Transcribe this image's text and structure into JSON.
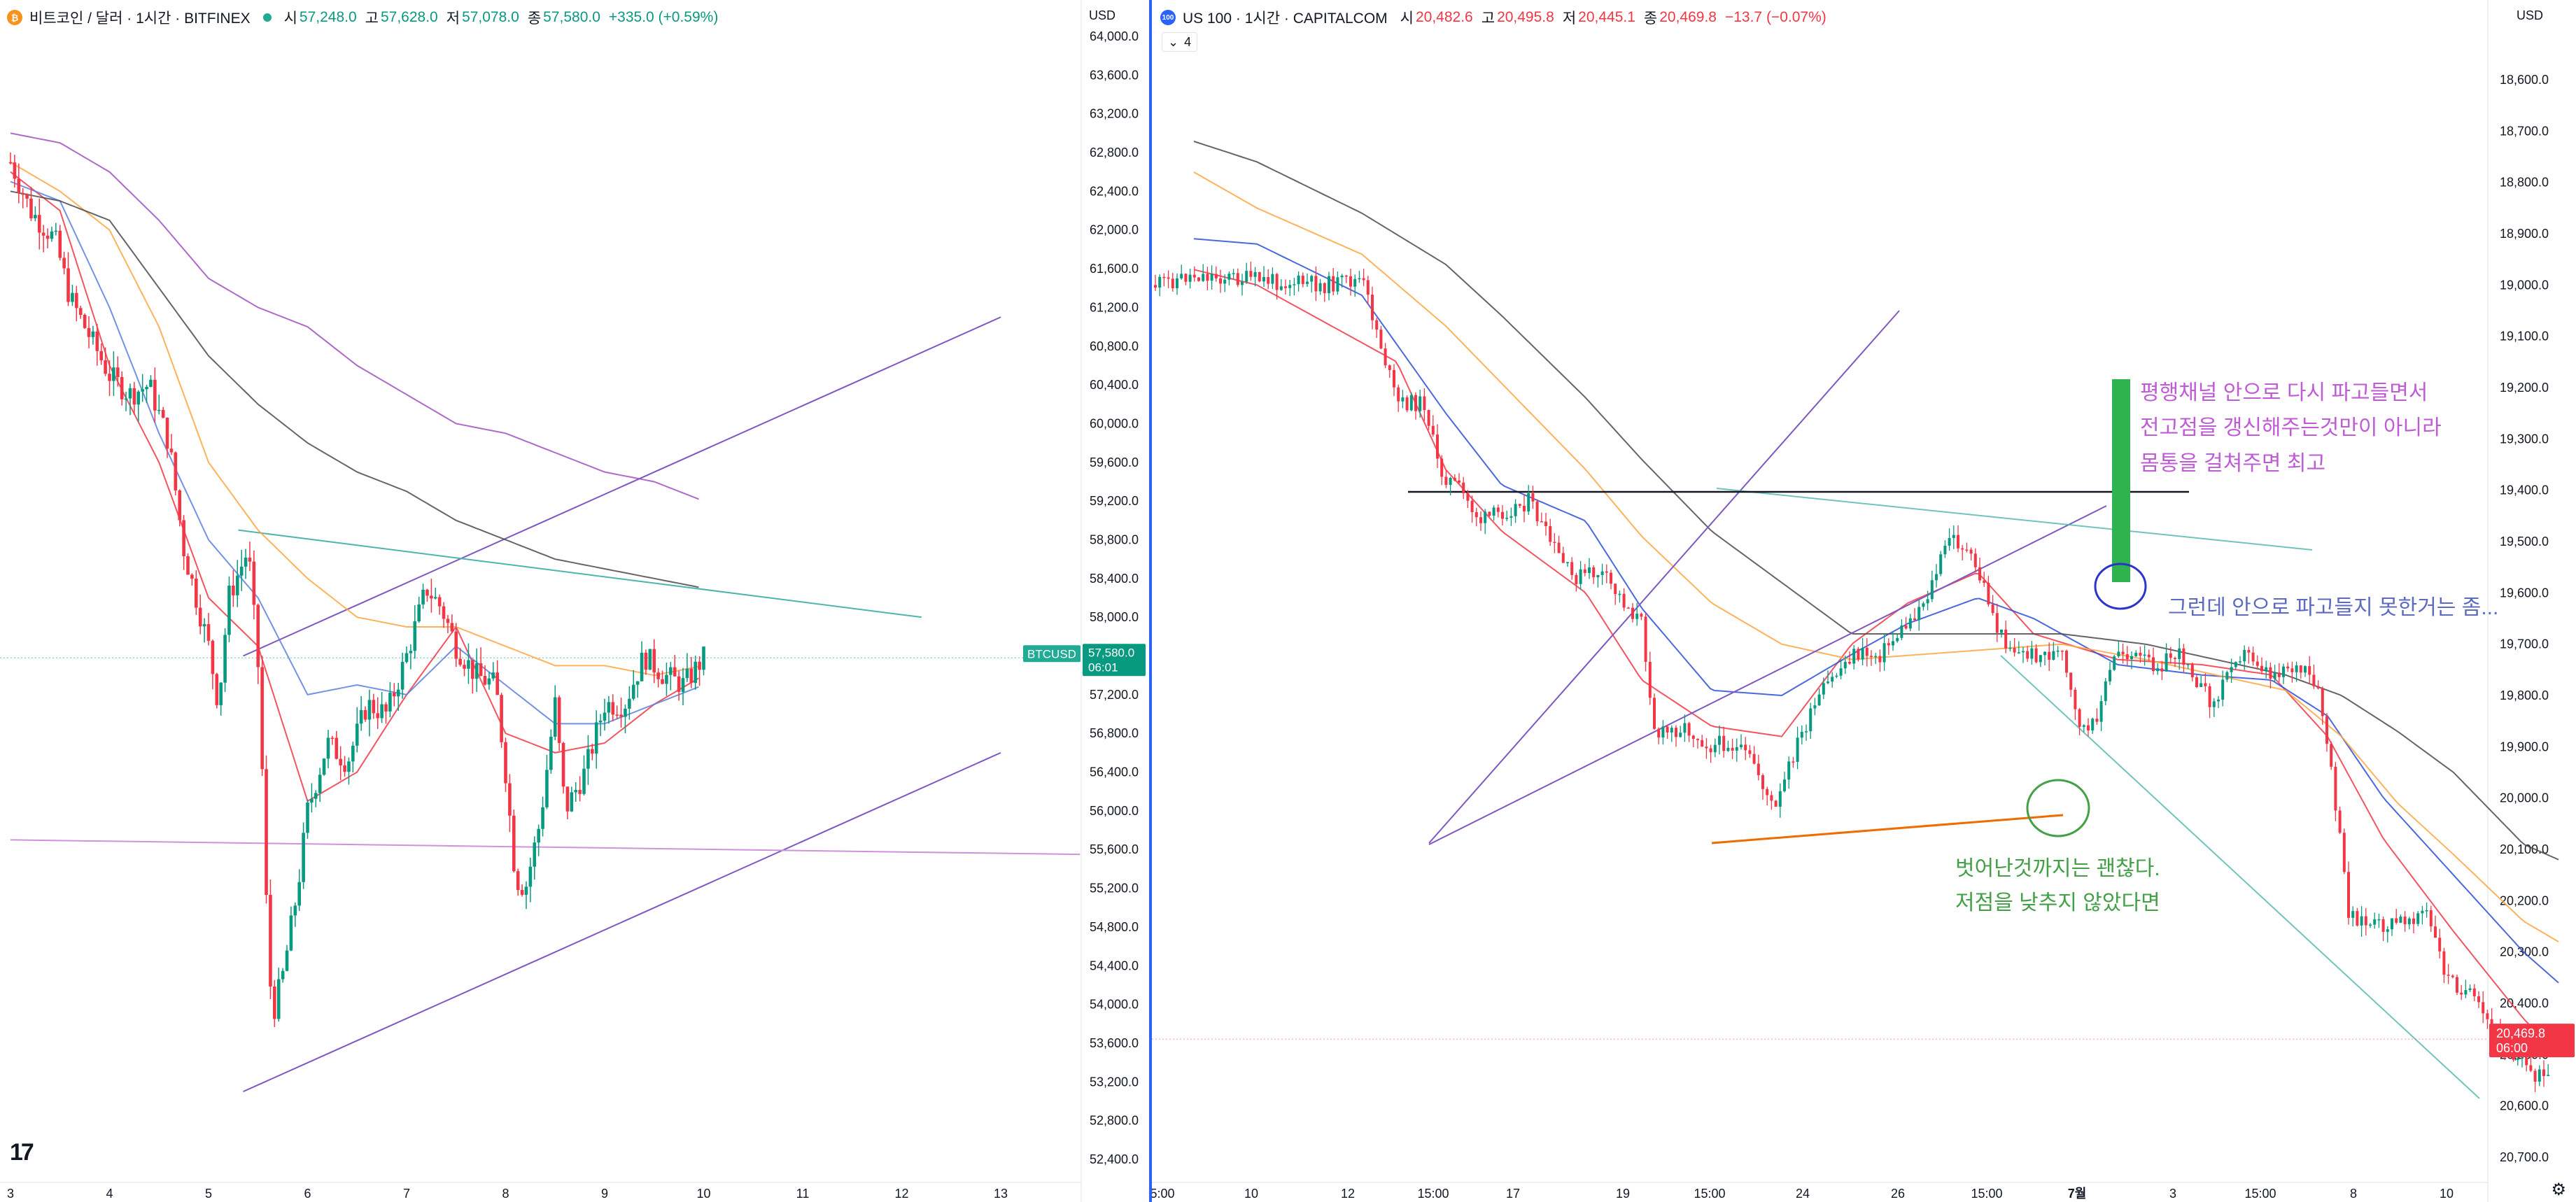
{
  "left": {
    "icon": "bitcoin-icon",
    "icon_glyph": "₿",
    "icon_color": "#f7931a",
    "title": "비트코인 / 달러 · 1시간 · BITFINEX",
    "ohlc": [
      {
        "label": "시",
        "value": "57,248.0"
      },
      {
        "label": "고",
        "value": "57,628.0"
      },
      {
        "label": "저",
        "value": "57,078.0"
      },
      {
        "label": "종",
        "value": "57,580.0"
      }
    ],
    "change": "+335.0 (+0.59%)",
    "change_color": "up",
    "currency": "USD",
    "badge_symbol": "BTCUSD",
    "badge_price": "57,580.0",
    "badge_time": "06:01",
    "logo": "17"
  },
  "right": {
    "icon": "nasdaq-100-icon",
    "icon_glyph": "100",
    "icon_color": "#2962ff",
    "title": "US 100 · 1시간 · CAPITALCOM",
    "ohlc": [
      {
        "label": "시",
        "value": "20,482.6"
      },
      {
        "label": "고",
        "value": "20,495.8"
      },
      {
        "label": "저",
        "value": "20,445.1"
      },
      {
        "label": "종",
        "value": "20,469.8"
      }
    ],
    "change": "−13.7 (−0.07%)",
    "change_color": "down",
    "currency": "USD",
    "indicators_count": "4",
    "badge_price": "20,469.8",
    "badge_time": "06:00"
  },
  "chart_data": [
    {
      "type": "candlestick",
      "title": "비트코인 / 달러 · 1시간 · BITFINEX",
      "ylim": [
        52200,
        64000
      ],
      "y_ticks": [
        52400,
        52800,
        53200,
        53600,
        54000,
        54400,
        54800,
        55200,
        55600,
        56000,
        56400,
        56800,
        57200,
        57600,
        58000,
        58400,
        58800,
        59200,
        59600,
        60000,
        60400,
        60800,
        61200,
        61600,
        62000,
        62400,
        62800,
        63200,
        63600,
        64000
      ],
      "y_tick_labels": [
        "52,400.0",
        "52,800.0",
        "53,200.0",
        "53,600.0",
        "54,000.0",
        "54,400.0",
        "54,800.0",
        "55,200.0",
        "55,600.0",
        "56,000.0",
        "56,400.0",
        "56,800.0",
        "57,200.0",
        "57,600.0",
        "58,000.0",
        "58,400.0",
        "58,800.0",
        "59,200.0",
        "59,600.0",
        "60,000.0",
        "60,400.0",
        "60,800.0",
        "61,200.0",
        "61,600.0",
        "62,000.0",
        "62,400.0",
        "62,800.0",
        "63,200.0",
        "63,600.0",
        "64,000.0"
      ],
      "x_ticks": [
        "3",
        "4",
        "5",
        "6",
        "7",
        "8",
        "9",
        "10",
        "11",
        "12",
        "13"
      ],
      "last_price": 57580,
      "close_path": [
        [
          3.0,
          62700
        ],
        [
          3.2,
          62200
        ],
        [
          3.45,
          61900
        ],
        [
          3.6,
          61300
        ],
        [
          3.8,
          60900
        ],
        [
          4.0,
          60500
        ],
        [
          4.2,
          60300
        ],
        [
          4.4,
          60400
        ],
        [
          4.6,
          59800
        ],
        [
          4.75,
          58700
        ],
        [
          5.0,
          57700
        ],
        [
          5.1,
          57100
        ],
        [
          5.2,
          58200
        ],
        [
          5.4,
          58700
        ],
        [
          5.5,
          57500
        ],
        [
          5.55,
          56200
        ],
        [
          5.6,
          54500
        ],
        [
          5.65,
          53900
        ],
        [
          5.75,
          54300
        ],
        [
          5.9,
          55200
        ],
        [
          6.0,
          56000
        ],
        [
          6.2,
          56700
        ],
        [
          6.4,
          56500
        ],
        [
          6.6,
          57100
        ],
        [
          6.8,
          57000
        ],
        [
          7.0,
          57600
        ],
        [
          7.2,
          58300
        ],
        [
          7.35,
          58100
        ],
        [
          7.5,
          57700
        ],
        [
          7.7,
          57400
        ],
        [
          7.9,
          57300
        ],
        [
          8.0,
          56400
        ],
        [
          8.1,
          55300
        ],
        [
          8.2,
          55200
        ],
        [
          8.35,
          55900
        ],
        [
          8.5,
          57100
        ],
        [
          8.6,
          56000
        ],
        [
          8.8,
          56400
        ],
        [
          9.0,
          57100
        ],
        [
          9.2,
          57100
        ],
        [
          9.4,
          57600
        ],
        [
          9.6,
          57400
        ],
        [
          9.8,
          57300
        ],
        [
          10.0,
          57580
        ]
      ],
      "moving_averages": [
        {
          "color": "#f23645",
          "points": [
            [
              3.0,
              62600
            ],
            [
              3.5,
              62200
            ],
            [
              4.0,
              60600
            ],
            [
              4.5,
              59600
            ],
            [
              5.0,
              58200
            ],
            [
              5.5,
              57700
            ],
            [
              6.0,
              56100
            ],
            [
              6.5,
              56400
            ],
            [
              7.0,
              57200
            ],
            [
              7.5,
              57900
            ],
            [
              8.0,
              56800
            ],
            [
              8.5,
              56600
            ],
            [
              9.0,
              56700
            ],
            [
              9.5,
              57100
            ],
            [
              10.0,
              57400
            ]
          ]
        },
        {
          "color": "#5b7fe0",
          "points": [
            [
              3.0,
              62500
            ],
            [
              3.5,
              62300
            ],
            [
              4.0,
              61200
            ],
            [
              4.5,
              59900
            ],
            [
              5.0,
              58800
            ],
            [
              5.5,
              58200
            ],
            [
              6.0,
              57200
            ],
            [
              6.5,
              57300
            ],
            [
              7.0,
              57200
            ],
            [
              7.5,
              57700
            ],
            [
              8.0,
              57300
            ],
            [
              8.5,
              56900
            ],
            [
              9.0,
              56900
            ],
            [
              9.5,
              57100
            ],
            [
              10.0,
              57300
            ]
          ]
        },
        {
          "color": "#ffa53f",
          "points": [
            [
              3.0,
              62700
            ],
            [
              3.5,
              62400
            ],
            [
              4.0,
              62000
            ],
            [
              4.5,
              61000
            ],
            [
              5.0,
              59600
            ],
            [
              5.5,
              58900
            ],
            [
              6.0,
              58400
            ],
            [
              6.5,
              58000
            ],
            [
              7.0,
              57900
            ],
            [
              7.5,
              57900
            ],
            [
              8.0,
              57700
            ],
            [
              8.5,
              57500
            ],
            [
              9.0,
              57500
            ],
            [
              9.5,
              57400
            ],
            [
              10.0,
              57500
            ]
          ]
        },
        {
          "color": "#4a4a4a",
          "points": [
            [
              3.0,
              62400
            ],
            [
              3.5,
              62300
            ],
            [
              4.0,
              62100
            ],
            [
              4.5,
              61400
            ],
            [
              5.0,
              60700
            ],
            [
              5.5,
              60200
            ],
            [
              6.0,
              59800
            ],
            [
              6.5,
              59500
            ],
            [
              7.0,
              59300
            ],
            [
              7.5,
              59000
            ],
            [
              8.0,
              58800
            ],
            [
              8.5,
              58600
            ],
            [
              9.0,
              58500
            ],
            [
              9.5,
              58400
            ],
            [
              10.0,
              58300
            ]
          ]
        },
        {
          "color": "#a04fbf",
          "points": [
            [
              3.0,
              63000
            ],
            [
              3.5,
              62900
            ],
            [
              4.0,
              62600
            ],
            [
              4.5,
              62100
            ],
            [
              5.0,
              61500
            ],
            [
              5.5,
              61200
            ],
            [
              6.0,
              61000
            ],
            [
              6.5,
              60600
            ],
            [
              7.0,
              60300
            ],
            [
              7.5,
              60000
            ],
            [
              8.0,
              59900
            ],
            [
              8.5,
              59700
            ],
            [
              9.0,
              59500
            ],
            [
              9.5,
              59400
            ],
            [
              10.0,
              59200
            ]
          ]
        }
      ],
      "trendlines": [
        {
          "color": "#7e57c2",
          "from": [
            5.35,
            57600
          ],
          "to": [
            13.0,
            61100
          ]
        },
        {
          "color": "#7e57c2",
          "from": [
            5.35,
            53100
          ],
          "to": [
            13.0,
            56600
          ]
        },
        {
          "color": "#4db6ac",
          "from": [
            5.3,
            58900
          ],
          "to": [
            12.2,
            58000
          ]
        },
        {
          "color": "#ce93d8",
          "from": [
            3.0,
            55700
          ],
          "to": [
            13.8,
            55550
          ]
        }
      ]
    },
    {
      "type": "candlestick",
      "title": "US 100 · 1시간 · CAPITALCOM",
      "ylim": [
        18480,
        20740
      ],
      "y_ticks": [
        18600,
        18700,
        18800,
        18900,
        19000,
        19100,
        19200,
        19300,
        19400,
        19500,
        19600,
        19700,
        19800,
        19900,
        20000,
        20100,
        20200,
        20300,
        20400,
        20500,
        20600,
        20700
      ],
      "y_tick_labels": [
        "18,600.0",
        "18,700.0",
        "18,800.0",
        "18,900.0",
        "19,000.0",
        "19,100.0",
        "19,200.0",
        "19,300.0",
        "19,400.0",
        "19,500.0",
        "19,600.0",
        "19,700.0",
        "19,800.0",
        "19,900.0",
        "20,000.0",
        "20,100.0",
        "20,200.0",
        "20,300.0",
        "20,400.0",
        "20,500.0",
        "20,600.0",
        "20,700.0"
      ],
      "x_ticks": [
        "5:00",
        "10",
        "12",
        "15:00",
        "17",
        "19",
        "15:00",
        "24",
        "26",
        "15:00",
        "7월",
        "3",
        "15:00",
        "8",
        "10"
      ],
      "last_price": 20469.8,
      "annotations": [
        {
          "text": "평행채널 안으로 다시 파고들면서",
          "color": "#c05bd6"
        },
        {
          "text": "전고점을 갱신해주는것만이 아니라",
          "color": "#c05bd6"
        },
        {
          "text": "몸통을 걸쳐주면 최고",
          "color": "#c05bd6"
        },
        {
          "text": "그런데 안으로 파고들지 못한거는 좀...",
          "color": "#5c6bc0"
        },
        {
          "text": "벗어난것까지는 괜찮다.",
          "color": "#43a047"
        },
        {
          "text": "저점을 낮추지 않았다면",
          "color": "#43a047"
        }
      ]
    }
  ]
}
